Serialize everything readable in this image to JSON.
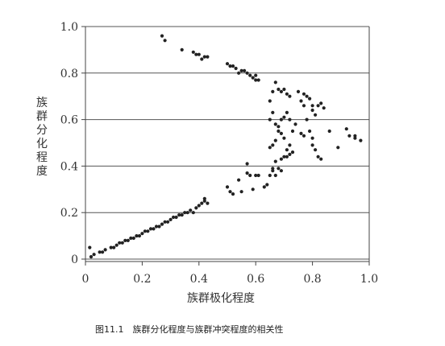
{
  "caption": "图11.1　族群分化程度与族群冲突程度的相关性",
  "chart_data": {
    "type": "scatter",
    "title": "",
    "xlabel": "族群极化程度",
    "ylabel": "族群分化程度",
    "xlim": [
      0,
      1.0
    ],
    "ylim": [
      0,
      1.0
    ],
    "x_ticks": [
      "0",
      "0.2",
      "0.4",
      "0.6",
      "0.8",
      "1.0"
    ],
    "y_ticks": [
      "0",
      "0.2",
      "0.4",
      "0.6",
      "0.8",
      "1.0"
    ],
    "grid": "horizontal",
    "legend": "none",
    "colors": {
      "points": "#222222",
      "grid": "#555555",
      "axes": "#444444"
    },
    "points": [
      [
        0.015,
        0.05
      ],
      [
        0.02,
        0.01
      ],
      [
        0.03,
        0.02
      ],
      [
        0.05,
        0.03
      ],
      [
        0.06,
        0.03
      ],
      [
        0.07,
        0.04
      ],
      [
        0.09,
        0.05
      ],
      [
        0.1,
        0.05
      ],
      [
        0.11,
        0.06
      ],
      [
        0.12,
        0.07
      ],
      [
        0.13,
        0.07
      ],
      [
        0.14,
        0.08
      ],
      [
        0.15,
        0.08
      ],
      [
        0.16,
        0.09
      ],
      [
        0.17,
        0.09
      ],
      [
        0.18,
        0.1
      ],
      [
        0.19,
        0.1
      ],
      [
        0.2,
        0.11
      ],
      [
        0.21,
        0.12
      ],
      [
        0.22,
        0.12
      ],
      [
        0.23,
        0.13
      ],
      [
        0.24,
        0.13
      ],
      [
        0.25,
        0.14
      ],
      [
        0.26,
        0.14
      ],
      [
        0.27,
        0.15
      ],
      [
        0.28,
        0.16
      ],
      [
        0.29,
        0.16
      ],
      [
        0.3,
        0.17
      ],
      [
        0.31,
        0.18
      ],
      [
        0.32,
        0.18
      ],
      [
        0.33,
        0.19
      ],
      [
        0.34,
        0.19
      ],
      [
        0.35,
        0.2
      ],
      [
        0.36,
        0.2
      ],
      [
        0.37,
        0.21
      ],
      [
        0.38,
        0.2
      ],
      [
        0.39,
        0.22
      ],
      [
        0.4,
        0.23
      ],
      [
        0.41,
        0.24
      ],
      [
        0.42,
        0.25
      ],
      [
        0.42,
        0.26
      ],
      [
        0.43,
        0.24
      ],
      [
        0.27,
        0.96
      ],
      [
        0.28,
        0.94
      ],
      [
        0.34,
        0.9
      ],
      [
        0.38,
        0.89
      ],
      [
        0.39,
        0.88
      ],
      [
        0.4,
        0.88
      ],
      [
        0.41,
        0.86
      ],
      [
        0.42,
        0.87
      ],
      [
        0.43,
        0.87
      ],
      [
        0.5,
        0.84
      ],
      [
        0.51,
        0.83
      ],
      [
        0.52,
        0.83
      ],
      [
        0.53,
        0.82
      ],
      [
        0.54,
        0.8
      ],
      [
        0.55,
        0.81
      ],
      [
        0.56,
        0.81
      ],
      [
        0.57,
        0.8
      ],
      [
        0.58,
        0.79
      ],
      [
        0.59,
        0.78
      ],
      [
        0.6,
        0.79
      ],
      [
        0.6,
        0.77
      ],
      [
        0.61,
        0.77
      ],
      [
        0.5,
        0.31
      ],
      [
        0.51,
        0.29
      ],
      [
        0.52,
        0.28
      ],
      [
        0.54,
        0.34
      ],
      [
        0.55,
        0.29
      ],
      [
        0.57,
        0.41
      ],
      [
        0.57,
        0.37
      ],
      [
        0.58,
        0.36
      ],
      [
        0.59,
        0.3
      ],
      [
        0.6,
        0.36
      ],
      [
        0.61,
        0.36
      ],
      [
        0.63,
        0.31
      ],
      [
        0.64,
        0.32
      ],
      [
        0.65,
        0.36
      ],
      [
        0.66,
        0.39
      ],
      [
        0.66,
        0.38
      ],
      [
        0.67,
        0.36
      ],
      [
        0.67,
        0.42
      ],
      [
        0.68,
        0.39
      ],
      [
        0.69,
        0.38
      ],
      [
        0.69,
        0.43
      ],
      [
        0.7,
        0.44
      ],
      [
        0.71,
        0.44
      ],
      [
        0.72,
        0.45
      ],
      [
        0.73,
        0.46
      ],
      [
        0.65,
        0.48
      ],
      [
        0.66,
        0.49
      ],
      [
        0.67,
        0.51
      ],
      [
        0.68,
        0.55
      ],
      [
        0.69,
        0.54
      ],
      [
        0.7,
        0.52
      ],
      [
        0.71,
        0.47
      ],
      [
        0.72,
        0.49
      ],
      [
        0.73,
        0.55
      ],
      [
        0.74,
        0.58
      ],
      [
        0.65,
        0.6
      ],
      [
        0.66,
        0.63
      ],
      [
        0.67,
        0.58
      ],
      [
        0.68,
        0.57
      ],
      [
        0.69,
        0.6
      ],
      [
        0.7,
        0.61
      ],
      [
        0.71,
        0.63
      ],
      [
        0.72,
        0.6
      ],
      [
        0.65,
        0.68
      ],
      [
        0.66,
        0.72
      ],
      [
        0.67,
        0.76
      ],
      [
        0.68,
        0.73
      ],
      [
        0.69,
        0.72
      ],
      [
        0.7,
        0.73
      ],
      [
        0.71,
        0.71
      ],
      [
        0.72,
        0.7
      ],
      [
        0.75,
        0.72
      ],
      [
        0.76,
        0.68
      ],
      [
        0.77,
        0.66
      ],
      [
        0.77,
        0.71
      ],
      [
        0.78,
        0.7
      ],
      [
        0.79,
        0.69
      ],
      [
        0.8,
        0.66
      ],
      [
        0.8,
        0.64
      ],
      [
        0.81,
        0.62
      ],
      [
        0.82,
        0.66
      ],
      [
        0.83,
        0.67
      ],
      [
        0.84,
        0.65
      ],
      [
        0.76,
        0.54
      ],
      [
        0.77,
        0.53
      ],
      [
        0.78,
        0.6
      ],
      [
        0.79,
        0.55
      ],
      [
        0.8,
        0.52
      ],
      [
        0.8,
        0.49
      ],
      [
        0.81,
        0.47
      ],
      [
        0.82,
        0.44
      ],
      [
        0.83,
        0.43
      ],
      [
        0.86,
        0.55
      ],
      [
        0.89,
        0.48
      ],
      [
        0.92,
        0.56
      ],
      [
        0.93,
        0.53
      ],
      [
        0.95,
        0.53
      ],
      [
        0.95,
        0.52
      ],
      [
        0.97,
        0.51
      ]
    ]
  }
}
